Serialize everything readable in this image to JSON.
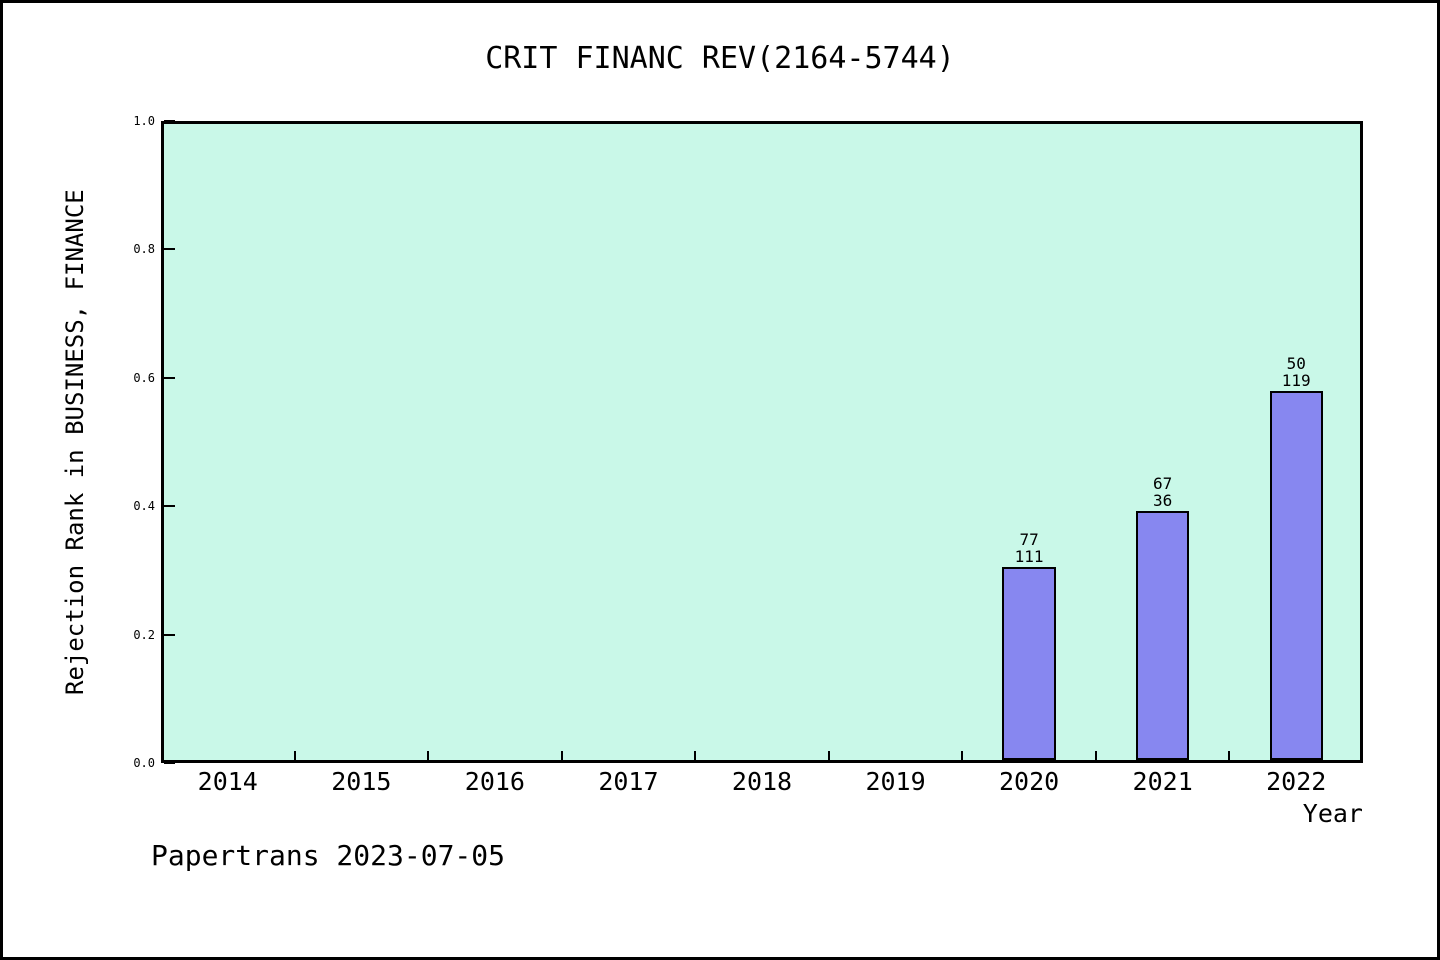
{
  "chart_data": {
    "type": "bar",
    "title": "CRIT FINANC REV(2164-5744)",
    "xlabel": "Year",
    "ylabel": "Rejection Rank in BUSINESS, FINANCE",
    "categories": [
      "2014",
      "2015",
      "2016",
      "2017",
      "2018",
      "2019",
      "2020",
      "2021",
      "2022"
    ],
    "x_range": [
      2013.5,
      2022.5
    ],
    "ylim": [
      0.0,
      1.0
    ],
    "y_tick_labels": [
      "0.0",
      "0.2",
      "0.4",
      "0.6",
      "0.8",
      "1.0"
    ],
    "grid": false,
    "bar_width": 0.4,
    "series": [
      {
        "name": "Rejection Rank",
        "points": [
          {
            "x": 2020,
            "y": 0.305,
            "annotation": [
              "77",
              "111"
            ]
          },
          {
            "x": 2021,
            "y": 0.392,
            "annotation": [
              "67",
              "36"
            ]
          },
          {
            "x": 2022,
            "y": 0.579,
            "annotation": [
              "50",
              "119"
            ]
          }
        ]
      }
    ],
    "colors": {
      "bar_fill": "#8787f0",
      "bar_edge": "#000000",
      "plot_background": "#c9f8e8",
      "figure_background": "#ffffff",
      "text": "#000000"
    }
  },
  "footer": {
    "text": "Papertrans 2023-07-05"
  }
}
